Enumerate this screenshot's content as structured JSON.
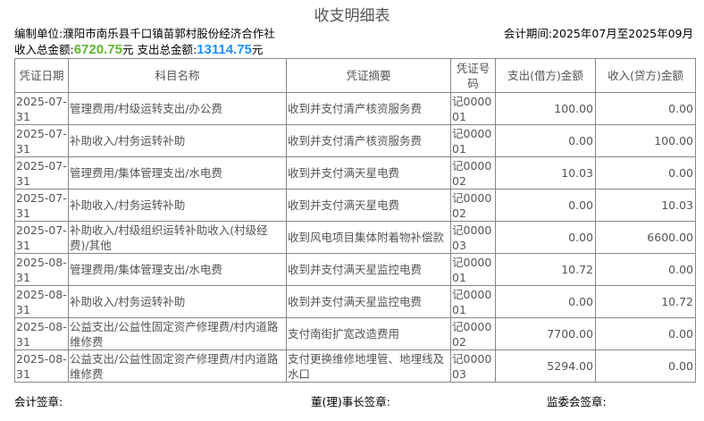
{
  "title": "收支明细表",
  "unit": "编制单位:濮阳市南乐县千口镇苗郭村股份经济合作社",
  "period": "会计期间:2025年07月至2025年09月",
  "totals": {
    "income_label": "收入总金额:",
    "income": "6720.75",
    "yuan": "元",
    "expense_label": " 支出总金额:",
    "expense": "13114.75",
    "income_color": "#5cb82e",
    "expense_color": "#1e90ff"
  },
  "headers": [
    "凭证日期",
    "科目名称",
    "凭证摘要",
    "凭证号码",
    "支出(借方)金额",
    "收入(贷方)金额"
  ],
  "rows": [
    [
      "2025-07-31",
      "管理费用/村级运转支出/办公费",
      "收到并支付清产核资服务费",
      "记000001",
      "100.00",
      "0.00"
    ],
    [
      "2025-07-31",
      "补助收入/村务运转补助",
      "收到并支付清产核资服务费",
      "记000001",
      "0.00",
      "100.00"
    ],
    [
      "2025-07-31",
      "管理费用/集体管理支出/水电费",
      "收到并支付满天星电费",
      "记000002",
      "10.03",
      "0.00"
    ],
    [
      "2025-07-31",
      "补助收入/村务运转补助",
      "收到并支付满天星电费",
      "记000002",
      "0.00",
      "10.03"
    ],
    [
      "2025-07-31",
      "补助收入/村级组织运转补助收入(村级经费)/其他",
      "收到风电项目集体附着物补偿款",
      "记000003",
      "0.00",
      "6600.00"
    ],
    [
      "2025-08-31",
      "管理费用/集体管理支出/水电费",
      "收到并支付满天星监控电费",
      "记000001",
      "10.72",
      "0.00"
    ],
    [
      "2025-08-31",
      "补助收入/村务运转补助",
      "收到并支付满天星监控电费",
      "记000001",
      "0.00",
      "10.72"
    ],
    [
      "2025-08-31",
      "公益支出/公益性固定资产修理费/村内道路维修费",
      "支付南街扩宽改造费用",
      "记000002",
      "7700.00",
      "0.00"
    ],
    [
      "2025-08-31",
      "公益支出/公益性固定资产修理费/村内道路维修费",
      "支付更换维修地埋管、地埋线及水口",
      "记000003",
      "5294.00",
      "0.00"
    ]
  ],
  "footer": [
    "会计签章:",
    "董(理)事长签章:",
    "监委会签章:"
  ]
}
